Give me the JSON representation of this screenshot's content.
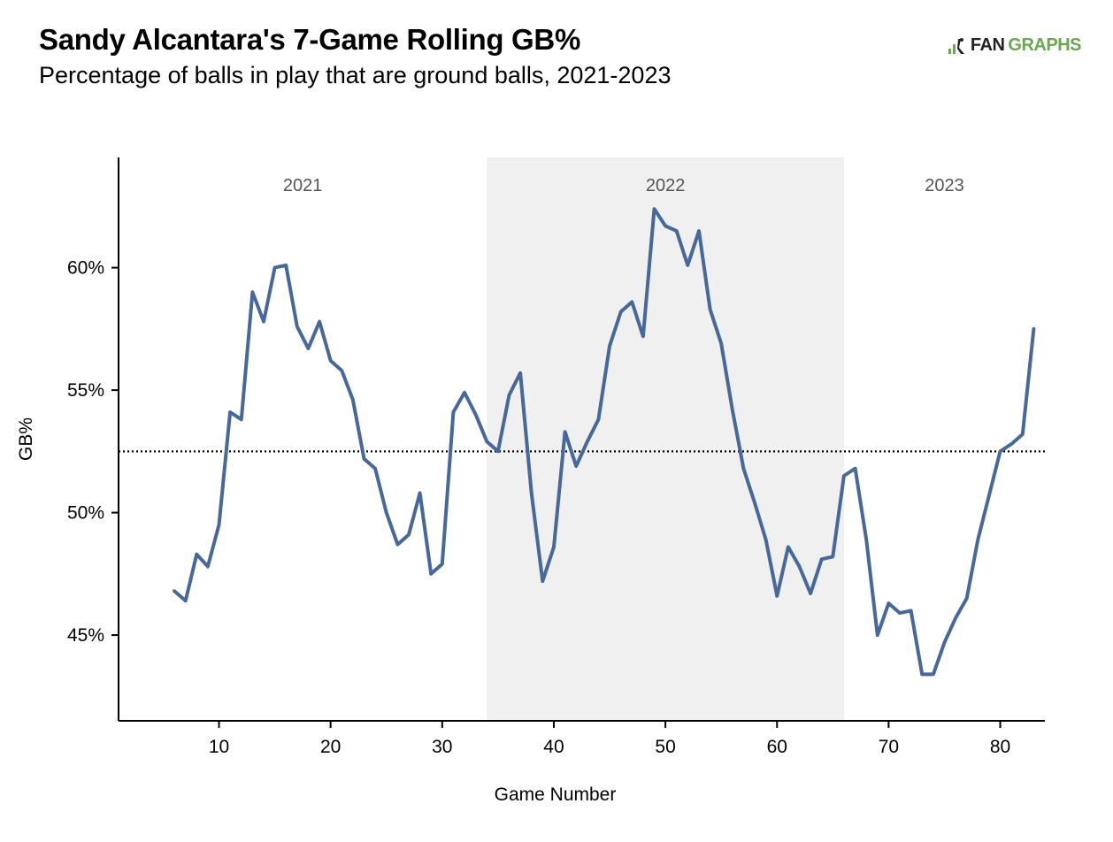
{
  "header": {
    "title": "Sandy Alcantara's 7-Game Rolling GB%",
    "subtitle": "Percentage of balls in play that are ground balls, 2021-2023"
  },
  "logo": {
    "icon": "fangraphs-logo-icon",
    "text_fan": "FAN",
    "text_graphs": "GRAPHS"
  },
  "colors": {
    "line": "#46689a",
    "shade": "#f0f0f0",
    "reference_line": "#000000",
    "logo_green": "#6aa84f"
  },
  "chart_data": {
    "type": "line",
    "title": "Sandy Alcantara's 7-Game Rolling GB%",
    "subtitle": "Percentage of balls in play that are ground balls, 2021-2023",
    "xlabel": "Game Number",
    "ylabel": "GB%",
    "xlim": [
      1,
      84
    ],
    "ylim": [
      41.5,
      64.5
    ],
    "xticks": [
      10,
      20,
      30,
      40,
      50,
      60,
      70,
      80
    ],
    "yticks": [
      45,
      50,
      55,
      60
    ],
    "ytick_format": "{v}%",
    "grid": false,
    "reference_line": {
      "y": 52.5,
      "style": "dotted"
    },
    "seasons": [
      {
        "label": "2021",
        "start": 1,
        "end": 34,
        "shaded": false
      },
      {
        "label": "2022",
        "start": 34,
        "end": 66,
        "shaded": true
      },
      {
        "label": "2023",
        "start": 66,
        "end": 84,
        "shaded": false
      }
    ],
    "series": [
      {
        "x": [
          6,
          7,
          8,
          9,
          10,
          11,
          12,
          13,
          14,
          15,
          16,
          17,
          18,
          19,
          20,
          21,
          22,
          23,
          24,
          25,
          26,
          27,
          28,
          29,
          30,
          31,
          32,
          33,
          34,
          35,
          36,
          37,
          38,
          39,
          40,
          41,
          42,
          43,
          44,
          45,
          46,
          47,
          48,
          49,
          50,
          51,
          52,
          53,
          54,
          55,
          56,
          57,
          58,
          59,
          60,
          61,
          62,
          63,
          64,
          65,
          66,
          67,
          68,
          69,
          70,
          71,
          72,
          73,
          74,
          75,
          76,
          77,
          78,
          79,
          80,
          81,
          82,
          83
        ],
        "y": [
          46.8,
          46.4,
          48.3,
          47.8,
          49.5,
          54.1,
          53.8,
          59.0,
          57.8,
          60.0,
          60.1,
          57.6,
          56.7,
          57.8,
          56.2,
          55.8,
          54.6,
          52.2,
          51.8,
          50.0,
          48.7,
          49.1,
          50.8,
          47.5,
          47.9,
          54.1,
          54.9,
          54.0,
          52.9,
          52.5,
          54.8,
          55.7,
          50.8,
          47.2,
          48.6,
          53.3,
          51.9,
          52.9,
          53.8,
          56.8,
          58.2,
          58.6,
          57.2,
          62.4,
          61.7,
          61.5,
          60.1,
          61.5,
          58.3,
          56.9,
          54.2,
          51.8,
          50.4,
          48.9,
          46.6,
          48.6,
          47.8,
          46.7,
          48.1,
          48.2,
          51.5,
          51.8,
          48.9,
          45.0,
          46.3,
          45.9,
          46.0,
          43.4,
          43.4,
          44.7,
          45.7,
          46.5,
          48.9,
          50.7,
          52.5,
          52.8,
          53.2,
          57.5
        ]
      }
    ]
  }
}
